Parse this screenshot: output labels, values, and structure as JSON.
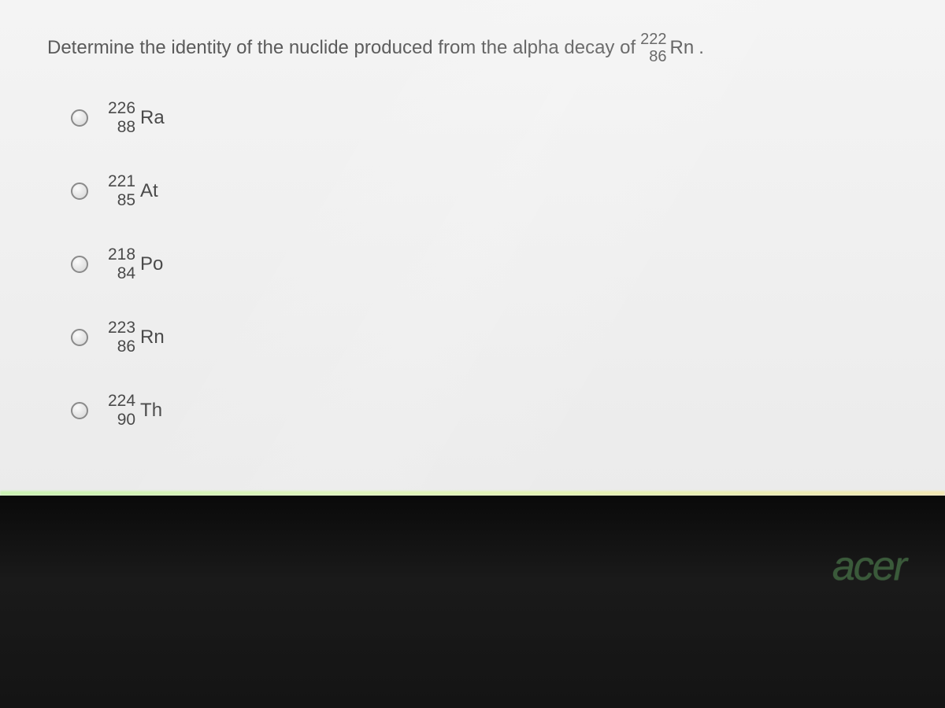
{
  "question": {
    "prefix": "Determine the identity of the nuclide produced from the alpha decay of",
    "isotope": {
      "mass": "222",
      "atomic": "86",
      "symbol": "Rn"
    },
    "suffix": "."
  },
  "options": [
    {
      "mass": "226",
      "atomic": "88",
      "symbol": "Ra"
    },
    {
      "mass": "221",
      "atomic": "85",
      "symbol": "At"
    },
    {
      "mass": "218",
      "atomic": "84",
      "symbol": "Po"
    },
    {
      "mass": "223",
      "atomic": "86",
      "symbol": "Rn"
    },
    {
      "mass": "224",
      "atomic": "90",
      "symbol": "Th"
    }
  ],
  "brand": "acer",
  "colors": {
    "question_text": "#5a5a5a",
    "option_text": "#4a4a4a",
    "screen_bg_top": "#f4f4f4",
    "screen_bg_bottom": "#ebebeb",
    "bezel_bg": "#0f0f0f",
    "brand_color": "#3a5a3a"
  }
}
